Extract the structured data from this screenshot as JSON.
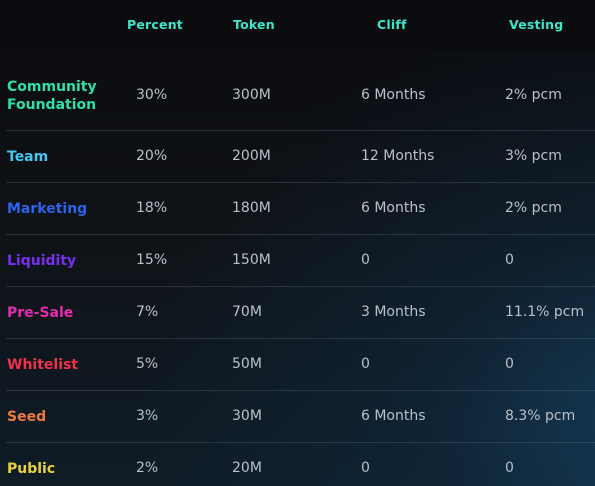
{
  "table": {
    "headers": [
      "Percent",
      "Token",
      "Cliff",
      "Vesting"
    ],
    "rows": [
      {
        "name": "Community Foundation",
        "percent": "30%",
        "token": "300M",
        "cliff": "6 Months",
        "vesting": "2% pcm",
        "color": "#2fe0a8"
      },
      {
        "name": "Team",
        "percent": "20%",
        "token": "200M",
        "cliff": "12 Months",
        "vesting": "3% pcm",
        "color": "#46c6f2"
      },
      {
        "name": "Marketing",
        "percent": "18%",
        "token": "180M",
        "cliff": "6 Months",
        "vesting": "2% pcm",
        "color": "#2d63ea"
      },
      {
        "name": "Liquidity",
        "percent": "15%",
        "token": "150M",
        "cliff": "0",
        "vesting": "0",
        "color": "#7a2ef0"
      },
      {
        "name": "Pre-Sale",
        "percent": "7%",
        "token": "70M",
        "cliff": "3 Months",
        "vesting": "11.1% pcm",
        "color": "#e62bb0"
      },
      {
        "name": "Whitelist",
        "percent": "5%",
        "token": "50M",
        "cliff": "0",
        "vesting": "0",
        "color": "#f0324a"
      },
      {
        "name": "Seed",
        "percent": "3%",
        "token": "30M",
        "cliff": "6 Months",
        "vesting": "8.3% pcm",
        "color": "#ef7a3a"
      },
      {
        "name": "Public",
        "percent": "2%",
        "token": "20M",
        "cliff": "0",
        "vesting": "0",
        "color": "#e8d23a"
      }
    ]
  }
}
